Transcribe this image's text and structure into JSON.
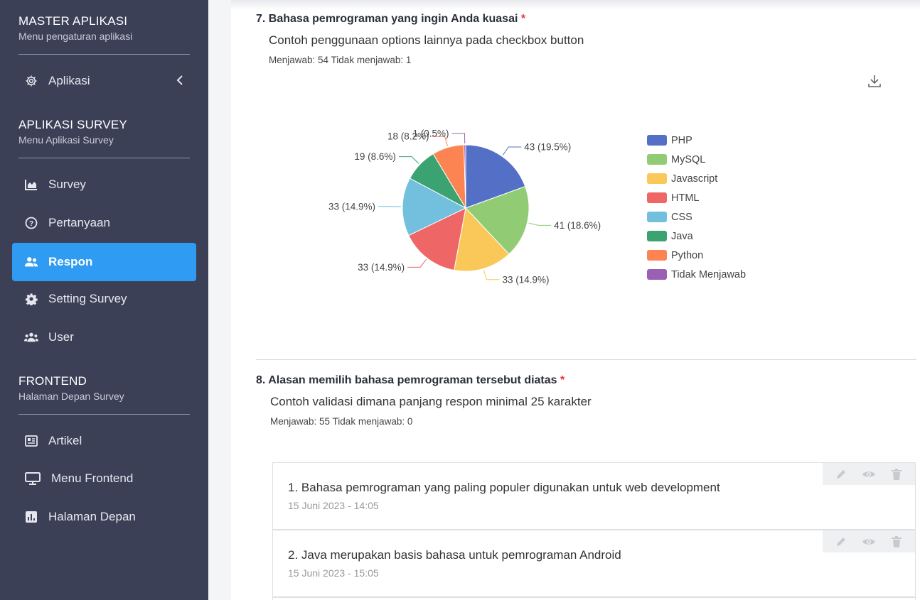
{
  "sidebar": {
    "master": {
      "title": "MASTER APLIKASI",
      "subtitle": "Menu pengaturan aplikasi"
    },
    "aplikasi_label": "Aplikasi",
    "survey_section": {
      "title": "APLIKASI SURVEY",
      "subtitle": "Menu Aplikasi Survey"
    },
    "survey_items": [
      {
        "label": "Survey",
        "icon": "chart-area-icon"
      },
      {
        "label": "Pertanyaan",
        "icon": "question-circle-icon"
      },
      {
        "label": "Respon",
        "icon": "users-icon",
        "active": true
      },
      {
        "label": "Setting Survey",
        "icon": "gear-icon"
      },
      {
        "label": "User",
        "icon": "user-group-icon"
      }
    ],
    "frontend_section": {
      "title": "FRONTEND",
      "subtitle": "Halaman Depan Survey"
    },
    "frontend_items": [
      {
        "label": "Artikel",
        "icon": "newspaper-icon"
      },
      {
        "label": "Menu Frontend",
        "icon": "desktop-icon"
      },
      {
        "label": "Halaman Depan",
        "icon": "chart-bar-icon"
      }
    ]
  },
  "question7": {
    "title": "7. Bahasa pemrograman yang ingin Anda kuasai",
    "required_mark": "*",
    "description": "Contoh penggunaan options lainnya pada checkbox button",
    "stats": "Menjawab: 54 Tidak menjawab: 1"
  },
  "question8": {
    "title": "8. Alasan memilih bahasa pemrograman tersebut diatas",
    "required_mark": "*",
    "description": "Contoh validasi dimana panjang respon minimal 25 karakter",
    "stats": "Menjawab: 55 Tidak menjawab: 0"
  },
  "responses": [
    {
      "text": "1. Bahasa pemrograman yang paling populer digunakan untuk web development",
      "date": "15 Juni 2023 - 14:05"
    },
    {
      "text": "2. Java merupakan basis bahasa untuk pemrograman Android",
      "date": "15 Juni 2023 - 15:05"
    }
  ],
  "chart_data": {
    "type": "pie",
    "series": [
      {
        "name": "PHP",
        "value": 43,
        "label": "43 (19.5%)",
        "color": "#5470c6"
      },
      {
        "name": "MySQL",
        "value": 41,
        "label": "41 (18.6%)",
        "color": "#91cc75"
      },
      {
        "name": "Javascript",
        "value": 33,
        "label": "33 (14.9%)",
        "color": "#fac858"
      },
      {
        "name": "HTML",
        "value": 33,
        "label": "33 (14.9%)",
        "color": "#ee6666"
      },
      {
        "name": "CSS",
        "value": 33,
        "label": "33 (14.9%)",
        "color": "#73c0de"
      },
      {
        "name": "Java",
        "value": 19,
        "label": "19 (8.6%)",
        "color": "#3ba272"
      },
      {
        "name": "Python",
        "value": 18,
        "label": "18 (8.2%)",
        "color": "#fc8452"
      },
      {
        "name": "Tidak Menjawab",
        "value": 1,
        "label": "1 (0.5%)",
        "color": "#9a60b4"
      }
    ],
    "legend_position": "right"
  }
}
